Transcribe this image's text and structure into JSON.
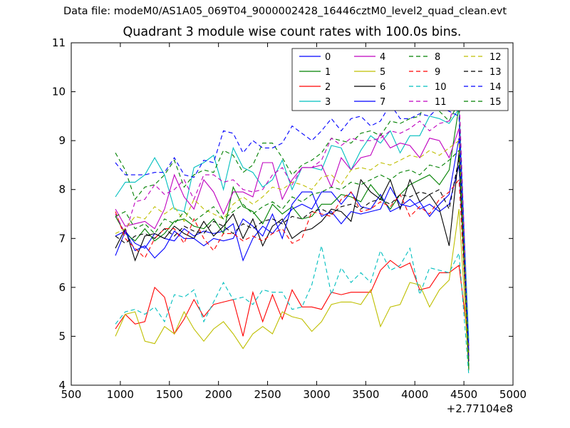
{
  "chart_data": {
    "type": "line",
    "subtitle": "Data file: modeM0/AS1A05_069T04_9000002428_16446cztM0_level2_quad_clean.evt",
    "title": "Quadrant 3 module wise count rates with 100.0s bins.",
    "xlabel": "",
    "ylabel": "",
    "x_offset_label": "+2.77104e8",
    "xlim": [
      500,
      5000
    ],
    "ylim": [
      4,
      11
    ],
    "xticks": [
      "500",
      "1000",
      "1500",
      "2000",
      "2500",
      "3000",
      "3500",
      "4000",
      "4500",
      "5000"
    ],
    "yticks": [
      "4",
      "5",
      "6",
      "7",
      "8",
      "9",
      "10",
      "11"
    ],
    "grid": false,
    "legend_position": "top-right",
    "legend_columns": 4,
    "x": [
      950,
      1050,
      1150,
      1250,
      1350,
      1450,
      1550,
      1650,
      1750,
      1850,
      1950,
      2050,
      2150,
      2250,
      2350,
      2450,
      2550,
      2650,
      2750,
      2850,
      2950,
      3050,
      3150,
      3250,
      3350,
      3450,
      3550,
      3650,
      3750,
      3850,
      3950,
      4050,
      4150,
      4250,
      4350,
      4450,
      4550
    ],
    "series": [
      {
        "name": "0",
        "color": "#0000ff",
        "dash": "solid",
        "values": [
          7.05,
          7.15,
          6.9,
          6.8,
          7.1,
          7.0,
          6.95,
          7.2,
          7.05,
          7.15,
          7.1,
          7.15,
          7.3,
          6.55,
          7.0,
          7.25,
          7.1,
          7.35,
          7.6,
          7.7,
          7.6,
          7.95,
          7.95,
          7.7,
          7.95,
          7.65,
          7.6,
          7.9,
          7.55,
          7.65,
          7.8,
          7.6,
          7.7,
          7.55,
          7.7,
          8.5,
          4.8
        ]
      },
      {
        "name": "1",
        "color": "#008000",
        "dash": "solid",
        "values": [
          7.45,
          7.1,
          6.95,
          7.2,
          6.95,
          7.1,
          7.35,
          7.4,
          7.25,
          7.2,
          7.4,
          7.1,
          8.05,
          7.65,
          7.55,
          7.3,
          7.7,
          7.5,
          7.65,
          7.4,
          7.45,
          7.7,
          7.7,
          7.9,
          7.85,
          7.75,
          8.1,
          7.85,
          7.6,
          7.9,
          8.1,
          8.2,
          8.3,
          8.1,
          8.4,
          9.7,
          4.5
        ]
      },
      {
        "name": "2",
        "color": "#ff0000",
        "dash": "solid",
        "values": [
          5.15,
          5.45,
          5.25,
          5.3,
          6.0,
          5.8,
          5.05,
          5.35,
          5.75,
          5.4,
          5.65,
          5.7,
          5.75,
          5.0,
          5.9,
          5.3,
          5.85,
          5.35,
          5.95,
          5.6,
          5.6,
          5.55,
          5.9,
          5.85,
          5.9,
          5.9,
          5.9,
          6.35,
          6.55,
          6.4,
          6.5,
          5.95,
          6.0,
          6.3,
          6.3,
          6.45,
          4.8
        ]
      },
      {
        "name": "3",
        "color": "#00bfbf",
        "dash": "solid",
        "values": [
          7.85,
          8.15,
          8.15,
          8.3,
          8.65,
          8.3,
          7.6,
          7.55,
          8.45,
          8.55,
          8.7,
          8.0,
          8.85,
          8.45,
          8.35,
          8.05,
          8.2,
          8.6,
          8.0,
          8.45,
          8.45,
          8.4,
          8.9,
          8.85,
          8.4,
          8.8,
          9.1,
          8.95,
          9.2,
          8.75,
          9.1,
          9.1,
          9.5,
          9.45,
          9.35,
          9.65,
          4.9
        ]
      },
      {
        "name": "4",
        "color": "#bf00bf",
        "dash": "solid",
        "values": [
          7.6,
          7.25,
          7.3,
          7.35,
          7.2,
          7.6,
          8.3,
          7.85,
          7.6,
          8.2,
          7.95,
          7.5,
          7.95,
          7.95,
          7.85,
          8.55,
          8.55,
          7.8,
          8.2,
          8.45,
          8.45,
          8.5,
          8.05,
          8.65,
          8.4,
          8.65,
          8.7,
          9.15,
          8.85,
          8.95,
          8.9,
          8.65,
          9.05,
          9.0,
          8.65,
          9.25,
          4.3
        ]
      },
      {
        "name": "5",
        "color": "#bfbf00",
        "dash": "solid",
        "values": [
          5.0,
          5.45,
          5.5,
          4.9,
          4.85,
          5.2,
          5.05,
          5.5,
          5.15,
          4.9,
          5.15,
          5.3,
          5.05,
          4.75,
          5.05,
          5.2,
          5.05,
          5.5,
          5.4,
          5.35,
          5.1,
          5.3,
          5.65,
          5.7,
          5.7,
          5.65,
          5.95,
          5.2,
          5.6,
          5.65,
          6.1,
          6.05,
          5.6,
          5.95,
          6.15,
          7.6,
          4.3
        ]
      },
      {
        "name": "6",
        "color": "#000000",
        "dash": "solid",
        "values": [
          6.8,
          7.2,
          6.55,
          7.05,
          7.1,
          7.0,
          7.25,
          7.1,
          7.0,
          7.35,
          7.05,
          7.25,
          7.5,
          7.0,
          7.4,
          6.85,
          7.25,
          7.4,
          7.0,
          7.15,
          7.2,
          7.35,
          7.6,
          7.55,
          7.35,
          8.2,
          7.95,
          7.8,
          8.2,
          7.6,
          8.2,
          7.75,
          7.9,
          7.6,
          6.85,
          8.75,
          4.6
        ]
      },
      {
        "name": "7",
        "color": "#0000ff",
        "dash": "solid",
        "values": [
          6.65,
          7.15,
          6.75,
          6.85,
          6.6,
          6.8,
          7.15,
          7.0,
          7.0,
          6.85,
          7.0,
          6.95,
          7.0,
          7.4,
          7.25,
          7.05,
          7.5,
          7.0,
          7.7,
          7.95,
          7.95,
          7.45,
          7.55,
          7.3,
          7.55,
          7.5,
          7.55,
          7.6,
          8.05,
          7.7,
          7.65,
          7.75,
          7.45,
          7.7,
          7.9,
          9.05,
          4.7
        ]
      },
      {
        "name": "8",
        "color": "#008000",
        "dash": "dashed",
        "values": [
          8.75,
          8.4,
          7.8,
          8.05,
          8.1,
          8.3,
          8.6,
          8.05,
          8.3,
          8.4,
          8.35,
          8.8,
          8.7,
          8.35,
          8.5,
          8.95,
          8.95,
          8.65,
          8.3,
          8.5,
          8.6,
          8.75,
          9.05,
          9.0,
          8.95,
          9.15,
          9.2,
          9.1,
          9.4,
          9.35,
          9.45,
          9.5,
          10.1,
          9.6,
          9.4,
          9.8,
          4.3
        ]
      },
      {
        "name": "9",
        "color": "#ff0000",
        "dash": "dashed",
        "values": [
          7.55,
          7.0,
          6.8,
          6.6,
          7.0,
          7.2,
          7.2,
          6.9,
          7.4,
          7.0,
          6.75,
          7.1,
          7.1,
          6.95,
          7.05,
          6.95,
          7.1,
          7.2,
          6.9,
          7.0,
          7.55,
          7.5,
          7.45,
          7.8,
          7.95,
          7.55,
          7.6,
          7.75,
          7.65,
          7.9,
          7.45,
          7.65,
          7.5,
          7.8,
          7.95,
          8.2,
          4.6
        ]
      },
      {
        "name": "10",
        "color": "#00bfbf",
        "dash": "dashed",
        "values": [
          5.25,
          5.5,
          5.55,
          5.45,
          5.6,
          5.3,
          5.85,
          5.8,
          5.95,
          5.3,
          5.7,
          6.1,
          5.75,
          5.8,
          5.65,
          5.95,
          5.9,
          5.9,
          5.55,
          5.6,
          6.05,
          6.85,
          5.85,
          6.4,
          6.1,
          6.3,
          6.1,
          6.75,
          6.35,
          6.45,
          6.8,
          5.85,
          6.4,
          6.35,
          6.3,
          6.7,
          4.2
        ]
      },
      {
        "name": "11",
        "color": "#bf00bf",
        "dash": "dashed",
        "values": [
          7.5,
          7.1,
          7.75,
          7.8,
          8.1,
          7.9,
          8.0,
          8.2,
          7.8,
          8.3,
          8.3,
          8.15,
          8.2,
          8.0,
          7.95,
          8.0,
          8.3,
          8.45,
          8.1,
          8.45,
          8.45,
          8.6,
          9.05,
          8.9,
          9.05,
          9.0,
          9.0,
          9.05,
          9.2,
          9.15,
          9.25,
          9.4,
          9.2,
          9.35,
          9.4,
          10.0,
          4.5
        ]
      },
      {
        "name": "12",
        "color": "#bfbf00",
        "dash": "dashed",
        "values": [
          7.1,
          7.2,
          7.45,
          7.4,
          7.65,
          7.5,
          7.65,
          7.35,
          7.8,
          7.6,
          7.5,
          7.4,
          7.7,
          7.85,
          7.7,
          7.85,
          8.05,
          8.0,
          8.15,
          8.1,
          8.0,
          8.25,
          8.3,
          8.1,
          8.4,
          8.45,
          8.4,
          8.55,
          8.5,
          8.6,
          8.7,
          8.65,
          8.8,
          8.7,
          8.85,
          9.0,
          4.6
        ]
      },
      {
        "name": "13",
        "color": "#000000",
        "dash": "dashed",
        "values": [
          7.05,
          6.9,
          7.05,
          7.1,
          7.0,
          7.2,
          7.05,
          7.25,
          7.15,
          7.1,
          7.35,
          7.25,
          7.1,
          7.3,
          7.2,
          7.35,
          7.4,
          7.3,
          7.45,
          7.4,
          7.55,
          7.6,
          7.5,
          7.65,
          7.7,
          7.6,
          7.75,
          7.8,
          7.7,
          7.9,
          7.85,
          7.95,
          7.9,
          8.0,
          7.6,
          8.65,
          4.4
        ]
      },
      {
        "name": "14",
        "color": "#0000ff",
        "dash": "dashed",
        "values": [
          8.55,
          8.3,
          8.3,
          8.3,
          8.35,
          8.35,
          8.65,
          8.3,
          8.25,
          8.6,
          8.55,
          9.2,
          9.15,
          8.75,
          9.0,
          8.85,
          8.85,
          8.95,
          9.3,
          9.15,
          9.0,
          9.2,
          9.45,
          9.2,
          9.45,
          9.5,
          9.3,
          9.4,
          9.75,
          9.45,
          9.45,
          9.55,
          9.5,
          9.7,
          9.6,
          9.5,
          4.5
        ]
      },
      {
        "name": "15",
        "color": "#008000",
        "dash": "dashed",
        "values": [
          7.45,
          7.55,
          7.2,
          7.3,
          7.1,
          7.4,
          7.3,
          7.55,
          7.35,
          7.5,
          7.65,
          7.4,
          7.55,
          7.7,
          7.5,
          7.65,
          7.75,
          7.6,
          7.85,
          7.75,
          7.9,
          7.95,
          8.05,
          8.0,
          8.15,
          8.1,
          8.2,
          8.3,
          8.2,
          8.35,
          8.4,
          8.3,
          8.5,
          8.45,
          8.6,
          8.8,
          4.4
        ]
      }
    ]
  }
}
